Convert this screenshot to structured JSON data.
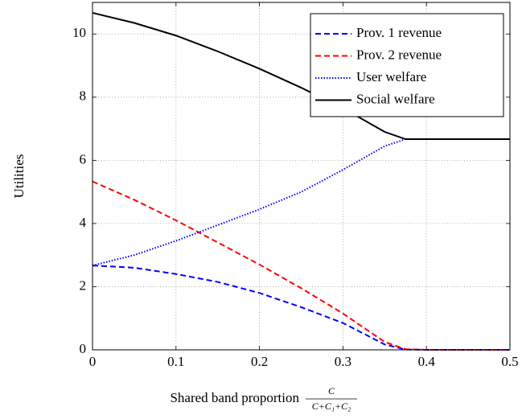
{
  "chart_data": {
    "type": "line",
    "xlabel": "Shared band proportion",
    "xlabel_fraction": {
      "numerator": "C",
      "denominator": "C+C₁+C₂"
    },
    "ylabel": "Utilities",
    "x": [
      0,
      0.05,
      0.1,
      0.15,
      0.2,
      0.25,
      0.3,
      0.35,
      0.375,
      0.4,
      0.45,
      0.5
    ],
    "series": [
      {
        "name": "Prov. 1 revenue",
        "color": "#0000ff",
        "dash": "dashed",
        "values": [
          2.67,
          2.6,
          2.4,
          2.15,
          1.8,
          1.35,
          0.85,
          0.17,
          0.01,
          0,
          0,
          0
        ]
      },
      {
        "name": "Prov. 2 revenue",
        "color": "#ff0000",
        "dash": "dashed",
        "values": [
          5.33,
          4.75,
          4.1,
          3.4,
          2.7,
          1.95,
          1.15,
          0.25,
          0.02,
          0,
          0,
          0
        ]
      },
      {
        "name": "User welfare",
        "color": "#0000ff",
        "dash": "dotted",
        "values": [
          2.67,
          3.0,
          3.45,
          3.95,
          4.45,
          5.0,
          5.7,
          6.45,
          6.67,
          6.67,
          6.67,
          6.67
        ]
      },
      {
        "name": "Social welfare",
        "color": "#000000",
        "dash": "solid",
        "values": [
          10.67,
          10.35,
          9.95,
          9.45,
          8.9,
          8.3,
          7.65,
          6.9,
          6.67,
          6.67,
          6.67,
          6.67
        ]
      }
    ],
    "xlim": [
      0,
      0.5
    ],
    "xticks": [
      0,
      0.1,
      0.2,
      0.3,
      0.4,
      0.5
    ],
    "ylim": [
      0,
      11
    ],
    "yticks": [
      0,
      2,
      4,
      6,
      8,
      10
    ],
    "grid": true,
    "legend": "top-right"
  }
}
